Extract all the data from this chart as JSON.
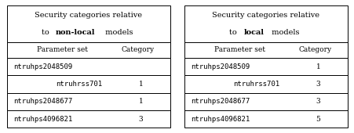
{
  "left_title_line1": "Security categories relative",
  "left_title_line2_normal1": "to ",
  "left_title_line2_bold": "non-local",
  "left_title_line2_normal2": " models",
  "right_title_line1": "Security categories relative",
  "right_title_line2_normal1": "to ",
  "right_title_line2_bold": "local",
  "right_title_line2_normal2": " models",
  "col_headers": [
    "Parameter set",
    "Category"
  ],
  "left_rows": [
    [
      "ntruhps2048509",
      ""
    ],
    [
      "ntruhrss701",
      "1"
    ],
    [
      "ntruhps2048677",
      "1"
    ],
    [
      "ntruhps4096821",
      "3"
    ]
  ],
  "right_rows": [
    [
      "ntruhps2048509",
      "1"
    ],
    [
      "ntruhrss701",
      "3"
    ],
    [
      "ntruhps2048677",
      "3"
    ],
    [
      "ntruhps4096821",
      "5"
    ]
  ],
  "font_size": 6.5,
  "title_font_size": 7.0,
  "bg_color": "#ffffff"
}
